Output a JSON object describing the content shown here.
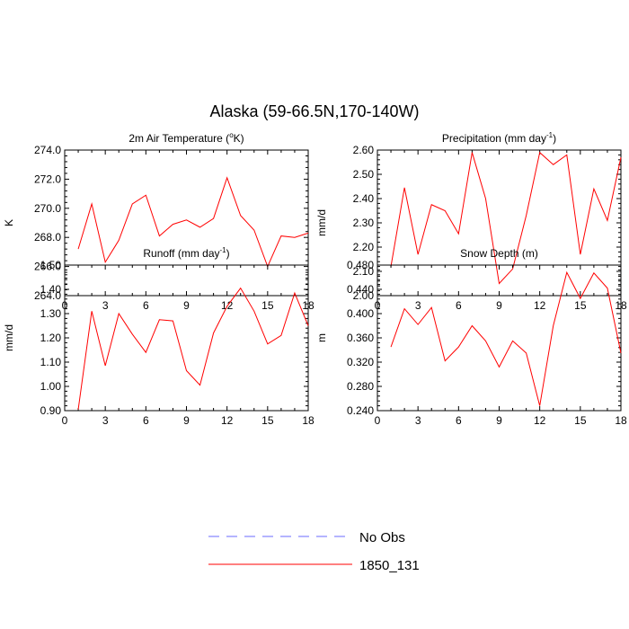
{
  "figure": {
    "title": "Alaska (59-66.5N,170-140W)"
  },
  "legend": {
    "entries": [
      {
        "label": "No Obs",
        "color": "#6b6bff",
        "dash": true
      },
      {
        "label": "1850_131",
        "color": "#ff0000",
        "dash": false
      }
    ]
  },
  "chart_data": [
    {
      "type": "line",
      "title_main": "2m Air Temperature (",
      "title_sup": "o",
      "title_end": "K)",
      "ylabel": "K",
      "xlim": [
        0,
        18
      ],
      "ylim": [
        264.0,
        274.0
      ],
      "xticks": [
        0,
        3,
        6,
        9,
        12,
        15,
        18
      ],
      "yticks": [
        "264.0",
        "266.0",
        "268.0",
        "270.0",
        "272.0",
        "274.0"
      ],
      "series": [
        {
          "color": "#ff0000",
          "x": [
            1,
            2,
            3,
            4,
            5,
            6,
            7,
            8,
            9,
            10,
            11,
            12,
            13,
            14,
            15,
            16,
            17,
            18
          ],
          "y": [
            267.2,
            270.3,
            266.3,
            267.8,
            270.3,
            270.9,
            268.1,
            268.9,
            269.2,
            268.7,
            269.3,
            272.1,
            269.5,
            268.5,
            266.0,
            268.1,
            268.0,
            268.3
          ]
        }
      ]
    },
    {
      "type": "line",
      "title_main": "Precipitation (mm day",
      "title_sup": "-1",
      "title_end": ")",
      "ylabel": "mm/d",
      "xlim": [
        0,
        18
      ],
      "ylim": [
        2.0,
        2.6
      ],
      "xticks": [
        0,
        3,
        6,
        9,
        12,
        15,
        18
      ],
      "yticks": [
        "2.00",
        "2.10",
        "2.20",
        "2.30",
        "2.40",
        "2.50",
        "2.60"
      ],
      "series": [
        {
          "color": "#ff0000",
          "x": [
            1,
            2,
            3,
            4,
            5,
            6,
            7,
            8,
            9,
            10,
            11,
            12,
            13,
            14,
            15,
            16,
            17,
            18
          ],
          "y": [
            2.12,
            2.445,
            2.17,
            2.375,
            2.35,
            2.255,
            2.59,
            2.4,
            2.05,
            2.11,
            2.33,
            2.59,
            2.54,
            2.58,
            2.17,
            2.44,
            2.31,
            2.57
          ]
        }
      ]
    },
    {
      "type": "line",
      "title_main": "Runoff (mm day",
      "title_sup": "-1",
      "title_end": ")",
      "ylabel": "mm/d",
      "xlim": [
        0,
        18
      ],
      "ylim": [
        0.9,
        1.5
      ],
      "xticks": [
        0,
        3,
        6,
        9,
        12,
        15,
        18
      ],
      "yticks": [
        "0.90",
        "1.00",
        "1.10",
        "1.20",
        "1.30",
        "1.40",
        "1.50"
      ],
      "series": [
        {
          "color": "#ff0000",
          "x": [
            1,
            2,
            3,
            4,
            5,
            6,
            7,
            8,
            9,
            10,
            11,
            12,
            13,
            14,
            15,
            16,
            17,
            18
          ],
          "y": [
            0.905,
            1.31,
            1.085,
            1.3,
            1.215,
            1.14,
            1.275,
            1.27,
            1.065,
            1.005,
            1.22,
            1.33,
            1.405,
            1.31,
            1.175,
            1.21,
            1.385,
            1.25
          ]
        }
      ]
    },
    {
      "type": "line",
      "title_main": "Snow Depth (m)",
      "title_sup": "",
      "title_end": "",
      "ylabel": "m",
      "xlim": [
        0,
        18
      ],
      "ylim": [
        0.24,
        0.48
      ],
      "xticks": [
        0,
        3,
        6,
        9,
        12,
        15,
        18
      ],
      "yticks": [
        "0.240",
        "0.280",
        "0.320",
        "0.360",
        "0.400",
        "0.440",
        "0.480"
      ],
      "series": [
        {
          "color": "#ff0000",
          "x": [
            1,
            2,
            3,
            4,
            5,
            6,
            7,
            8,
            9,
            10,
            11,
            12,
            13,
            14,
            15,
            16,
            17,
            18
          ],
          "y": [
            0.345,
            0.408,
            0.382,
            0.41,
            0.322,
            0.345,
            0.38,
            0.355,
            0.312,
            0.355,
            0.335,
            0.248,
            0.38,
            0.468,
            0.425,
            0.467,
            0.442,
            0.335
          ]
        }
      ]
    }
  ]
}
